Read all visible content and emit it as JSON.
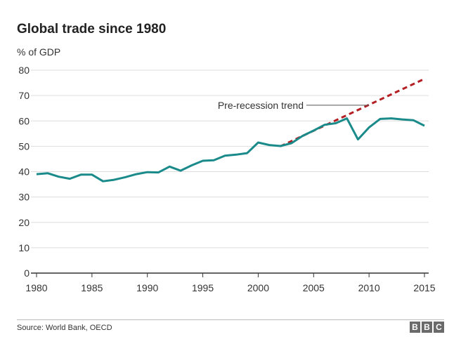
{
  "header": {
    "title": "Global trade since 1980",
    "unit": "% of GDP"
  },
  "footer": {
    "source": "Source: World Bank, OECD",
    "logo": [
      "B",
      "B",
      "C"
    ]
  },
  "colors": {
    "series": "#1a8a8a",
    "trend": "#b41f24",
    "grid": "#dddddd",
    "axis": "#333333"
  },
  "chart_data": {
    "type": "line",
    "title": "Global trade since 1980",
    "ylabel": "% of GDP",
    "xlim": [
      1980,
      2015
    ],
    "ylim": [
      0,
      80
    ],
    "xticks": [
      1980,
      1985,
      1990,
      1995,
      2000,
      2005,
      2010,
      2015
    ],
    "yticks": [
      0,
      10,
      20,
      30,
      40,
      50,
      60,
      70,
      80
    ],
    "grid": "horizontal",
    "series": [
      {
        "x": [
          1980,
          1981,
          1982,
          1983,
          1984,
          1985,
          1986,
          1987,
          1988,
          1989,
          1990,
          1991,
          1992,
          1993,
          1994,
          1995,
          1996,
          1997,
          1998,
          1999,
          2000,
          2001,
          2002,
          2003,
          2004,
          2005,
          2006,
          2007,
          2008,
          2009,
          2010,
          2011,
          2012,
          2013,
          2014,
          2015
        ],
        "values": [
          39.0,
          39.4,
          38.0,
          37.2,
          38.8,
          38.8,
          36.2,
          36.8,
          37.8,
          39.0,
          39.8,
          39.7,
          42.0,
          40.4,
          42.5,
          44.3,
          44.5,
          46.3,
          46.7,
          47.3,
          51.5,
          50.5,
          50.1,
          51.2,
          54.1,
          56.2,
          58.5,
          59.1,
          61.0,
          52.7,
          57.4,
          60.8,
          61.0,
          60.6,
          60.3,
          58.1
        ]
      },
      {
        "name": "Pre-recession trend",
        "style": "dashed",
        "x": [
          2002,
          2015
        ],
        "values": [
          50.0,
          76.6
        ]
      }
    ],
    "annotations": [
      {
        "text": "Pre-recession trend",
        "x": 2010,
        "y": 66.2
      }
    ]
  }
}
